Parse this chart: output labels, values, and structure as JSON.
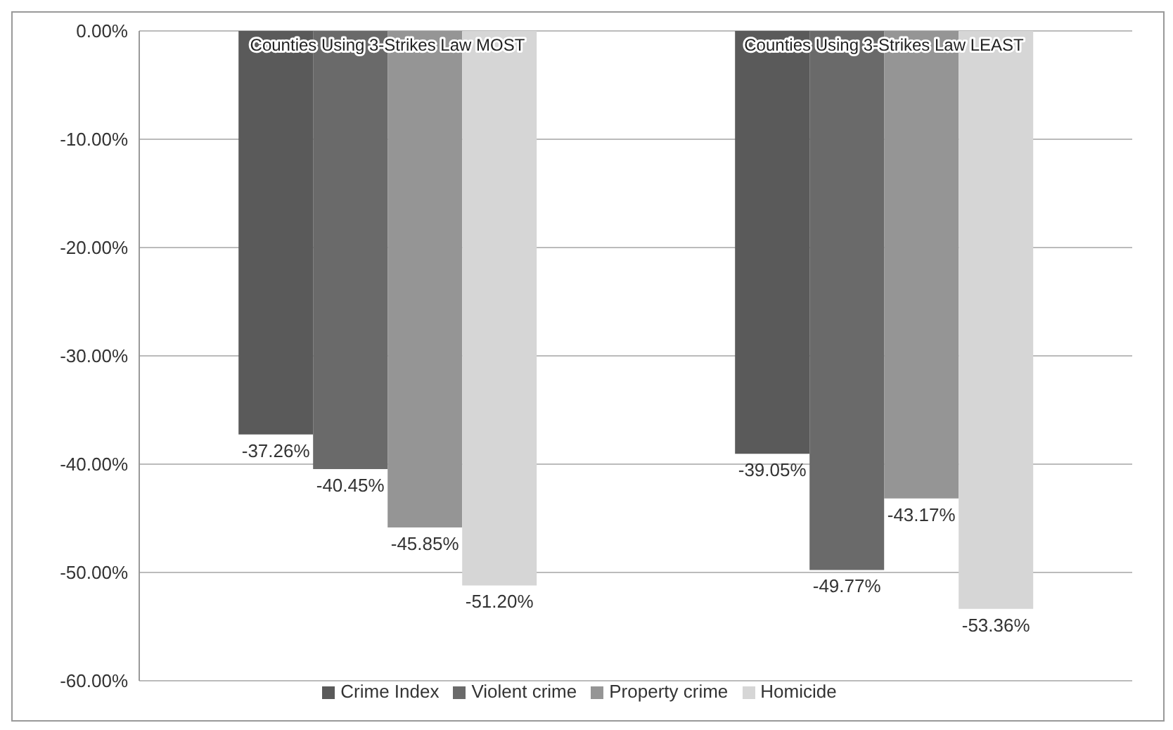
{
  "chart_data": {
    "type": "bar",
    "categories": [
      "Counties Using 3-Strikes Law MOST",
      "Counties Using 3-Strikes Law LEAST"
    ],
    "series": [
      {
        "name": "Crime Index",
        "color": "#5a5a5a",
        "values": [
          -37.26,
          -39.05
        ],
        "value_labels": [
          "-37.26%",
          "-39.05%"
        ]
      },
      {
        "name": "Violent crime",
        "color": "#6a6a6a",
        "values": [
          -40.45,
          -49.77
        ],
        "value_labels": [
          "-40.45%",
          "-49.77%"
        ]
      },
      {
        "name": "Property crime",
        "color": "#959595",
        "values": [
          -45.85,
          -43.17
        ],
        "value_labels": [
          "-45.85%",
          "-43.17%"
        ]
      },
      {
        "name": "Homicide",
        "color": "#d6d6d6",
        "values": [
          -51.2,
          -53.36
        ],
        "value_labels": [
          "-51.20%",
          "-53.36%"
        ]
      }
    ],
    "ylim": [
      -60,
      0
    ],
    "yticks": [
      {
        "value": 0,
        "label": "0.00%"
      },
      {
        "value": -10,
        "label": "-10.00%"
      },
      {
        "value": -20,
        "label": "-20.00%"
      },
      {
        "value": -30,
        "label": "-30.00%"
      },
      {
        "value": -40,
        "label": "-40.00%"
      },
      {
        "value": -50,
        "label": "-50.00%"
      },
      {
        "value": -60,
        "label": "-60.00%"
      }
    ],
    "grid": "y",
    "legend": "bottom"
  }
}
